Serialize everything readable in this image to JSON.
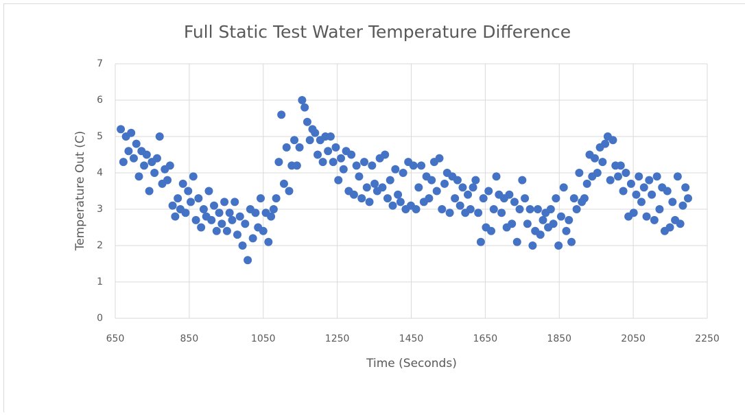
{
  "chart_data": {
    "type": "scatter",
    "title": "Full Static Test Water Temperature Difference",
    "xlabel": "Time (Seconds)",
    "ylabel": "Temperature Out (C)",
    "xlim": [
      650,
      2250
    ],
    "xticks": [
      650,
      850,
      1050,
      1250,
      1450,
      1650,
      1850,
      2050,
      2250
    ],
    "ylim": [
      0,
      7
    ],
    "yticks": [
      0,
      1,
      2,
      3,
      4,
      5,
      6,
      7
    ],
    "grid": true,
    "series": [
      {
        "color": "#4472c4",
        "x": [
          665,
          672,
          679,
          686,
          693,
          700,
          707,
          714,
          721,
          728,
          735,
          742,
          749,
          756,
          763,
          770,
          777,
          784,
          791,
          798,
          805,
          812,
          819,
          826,
          833,
          840,
          847,
          854,
          861,
          868,
          875,
          882,
          889,
          896,
          903,
          910,
          917,
          924,
          931,
          938,
          945,
          952,
          959,
          966,
          973,
          980,
          987,
          994,
          1001,
          1008,
          1015,
          1022,
          1029,
          1036,
          1043,
          1050,
          1057,
          1064,
          1071,
          1078,
          1085,
          1092,
          1099,
          1106,
          1113,
          1120,
          1127,
          1134,
          1141,
          1148,
          1155,
          1162,
          1169,
          1176,
          1183,
          1190,
          1197,
          1204,
          1211,
          1218,
          1225,
          1232,
          1239,
          1246,
          1253,
          1260,
          1267,
          1274,
          1281,
          1288,
          1295,
          1302,
          1309,
          1316,
          1323,
          1330,
          1337,
          1344,
          1351,
          1358,
          1365,
          1372,
          1379,
          1386,
          1393,
          1400,
          1407,
          1414,
          1421,
          1428,
          1435,
          1442,
          1449,
          1456,
          1463,
          1470,
          1477,
          1484,
          1491,
          1498,
          1505,
          1512,
          1519,
          1526,
          1533,
          1540,
          1547,
          1554,
          1561,
          1568,
          1575,
          1582,
          1589,
          1596,
          1603,
          1610,
          1617,
          1624,
          1631,
          1638,
          1645,
          1652,
          1659,
          1666,
          1673,
          1680,
          1687,
          1694,
          1701,
          1708,
          1715,
          1722,
          1729,
          1736,
          1743,
          1750,
          1757,
          1764,
          1771,
          1778,
          1785,
          1792,
          1799,
          1806,
          1813,
          1820,
          1827,
          1834,
          1841,
          1848,
          1855,
          1862,
          1869,
          1876,
          1883,
          1890,
          1897,
          1904,
          1911,
          1918,
          1925,
          1932,
          1939,
          1946,
          1953,
          1960,
          1967,
          1974,
          1981,
          1988,
          1995,
          2002,
          2009,
          2016,
          2023,
          2030,
          2037,
          2044,
          2051,
          2058,
          2065,
          2072,
          2079,
          2086,
          2093,
          2100,
          2107,
          2114,
          2121,
          2128,
          2135,
          2142,
          2149,
          2156,
          2163,
          2170,
          2177,
          2184,
          2191,
          2198
        ],
        "y": [
          5.2,
          4.3,
          5.0,
          4.6,
          5.1,
          4.4,
          4.8,
          3.9,
          4.6,
          4.2,
          4.5,
          3.5,
          4.3,
          4.0,
          4.4,
          5.0,
          3.7,
          4.1,
          3.8,
          4.2,
          3.1,
          2.8,
          3.3,
          3.0,
          3.7,
          2.9,
          3.5,
          3.2,
          3.9,
          2.7,
          3.3,
          2.5,
          3.0,
          2.8,
          3.5,
          2.7,
          3.1,
          2.4,
          2.9,
          2.6,
          3.2,
          2.4,
          2.9,
          2.7,
          3.2,
          2.3,
          2.8,
          2.0,
          2.6,
          1.6,
          3.0,
          2.2,
          2.9,
          2.5,
          3.3,
          2.4,
          2.9,
          2.1,
          2.8,
          3.0,
          3.3,
          4.3,
          5.6,
          3.7,
          4.7,
          3.5,
          4.2,
          4.9,
          4.2,
          4.7,
          6.0,
          5.8,
          5.4,
          4.9,
          5.2,
          5.1,
          4.5,
          4.9,
          4.3,
          5.0,
          4.6,
          5.0,
          4.3,
          4.7,
          3.8,
          4.4,
          4.1,
          4.6,
          3.5,
          4.5,
          3.4,
          4.2,
          3.9,
          3.3,
          4.3,
          3.6,
          3.2,
          4.2,
          3.7,
          3.5,
          4.4,
          3.6,
          4.5,
          3.3,
          3.8,
          3.1,
          4.1,
          3.4,
          3.2,
          4.0,
          3.0,
          4.3,
          3.1,
          4.2,
          3.0,
          3.6,
          4.2,
          3.2,
          3.9,
          3.3,
          3.8,
          4.3,
          3.5,
          4.4,
          3.0,
          3.7,
          4.0,
          2.9,
          3.9,
          3.3,
          3.8,
          3.1,
          3.6,
          2.9,
          3.4,
          3.0,
          3.6,
          3.8,
          2.9,
          2.1,
          3.3,
          2.5,
          3.5,
          2.4,
          3.0,
          3.9,
          3.4,
          2.9,
          3.3,
          2.5,
          3.4,
          2.6,
          3.2,
          2.1,
          3.0,
          3.8,
          3.3,
          2.6,
          3.0,
          2.0,
          2.4,
          3.0,
          2.3,
          2.7,
          2.9,
          2.5,
          3.0,
          2.6,
          3.3,
          2.0,
          2.8,
          3.6,
          2.4,
          2.7,
          2.1,
          3.3,
          3.0,
          4.0,
          3.2,
          3.3,
          3.7,
          4.5,
          3.9,
          4.4,
          4.0,
          4.7,
          4.3,
          4.8,
          5.0,
          3.8,
          4.9,
          4.2,
          3.9,
          4.2,
          3.5,
          4.0,
          2.8,
          3.7,
          2.9,
          3.4,
          3.9,
          3.2,
          3.6,
          2.8,
          3.8,
          3.4,
          2.7,
          3.9,
          3.0,
          3.6,
          2.4,
          3.5,
          2.5,
          3.2,
          2.7,
          3.9,
          2.6,
          3.1,
          3.6,
          3.3
        ]
      }
    ]
  }
}
